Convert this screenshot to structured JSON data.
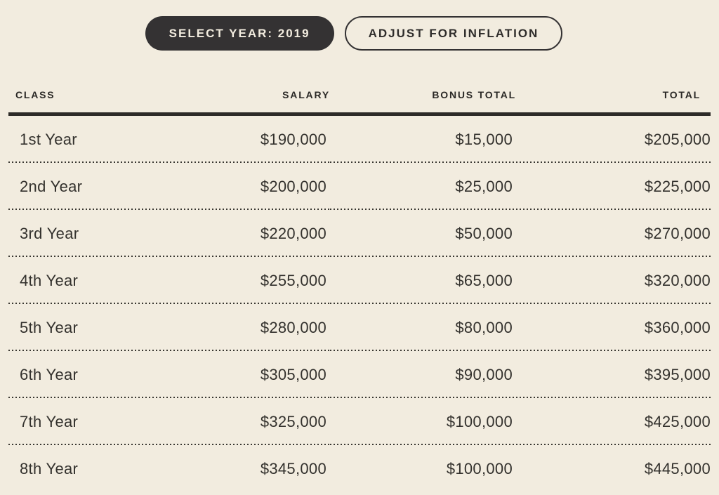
{
  "toolbar": {
    "select_year_label": "SELECT YEAR: 2019",
    "adjust_inflation_label": "ADJUST FOR INFLATION"
  },
  "table": {
    "headers": {
      "class": "CLASS",
      "salary": "SALARY",
      "bonus": "BONUS TOTAL",
      "total": "TOTAL"
    },
    "rows": [
      {
        "class": "1st Year",
        "salary": "$190,000",
        "bonus": "$15,000",
        "total": "$205,000"
      },
      {
        "class": "2nd Year",
        "salary": "$200,000",
        "bonus": "$25,000",
        "total": "$225,000"
      },
      {
        "class": "3rd Year",
        "salary": "$220,000",
        "bonus": "$50,000",
        "total": "$270,000"
      },
      {
        "class": "4th Year",
        "salary": "$255,000",
        "bonus": "$65,000",
        "total": "$320,000"
      },
      {
        "class": "5th Year",
        "salary": "$280,000",
        "bonus": "$80,000",
        "total": "$360,000"
      },
      {
        "class": "6th Year",
        "salary": "$305,000",
        "bonus": "$90,000",
        "total": "$395,000"
      },
      {
        "class": "7th Year",
        "salary": "$325,000",
        "bonus": "$100,000",
        "total": "$425,000"
      },
      {
        "class": "8th Year",
        "salary": "$345,000",
        "bonus": "$100,000",
        "total": "$445,000"
      }
    ]
  },
  "colors": {
    "background": "#f2ecdf",
    "dark_accent": "#343233",
    "header_rule": "#2d2b28",
    "body_text": "#33312d"
  }
}
